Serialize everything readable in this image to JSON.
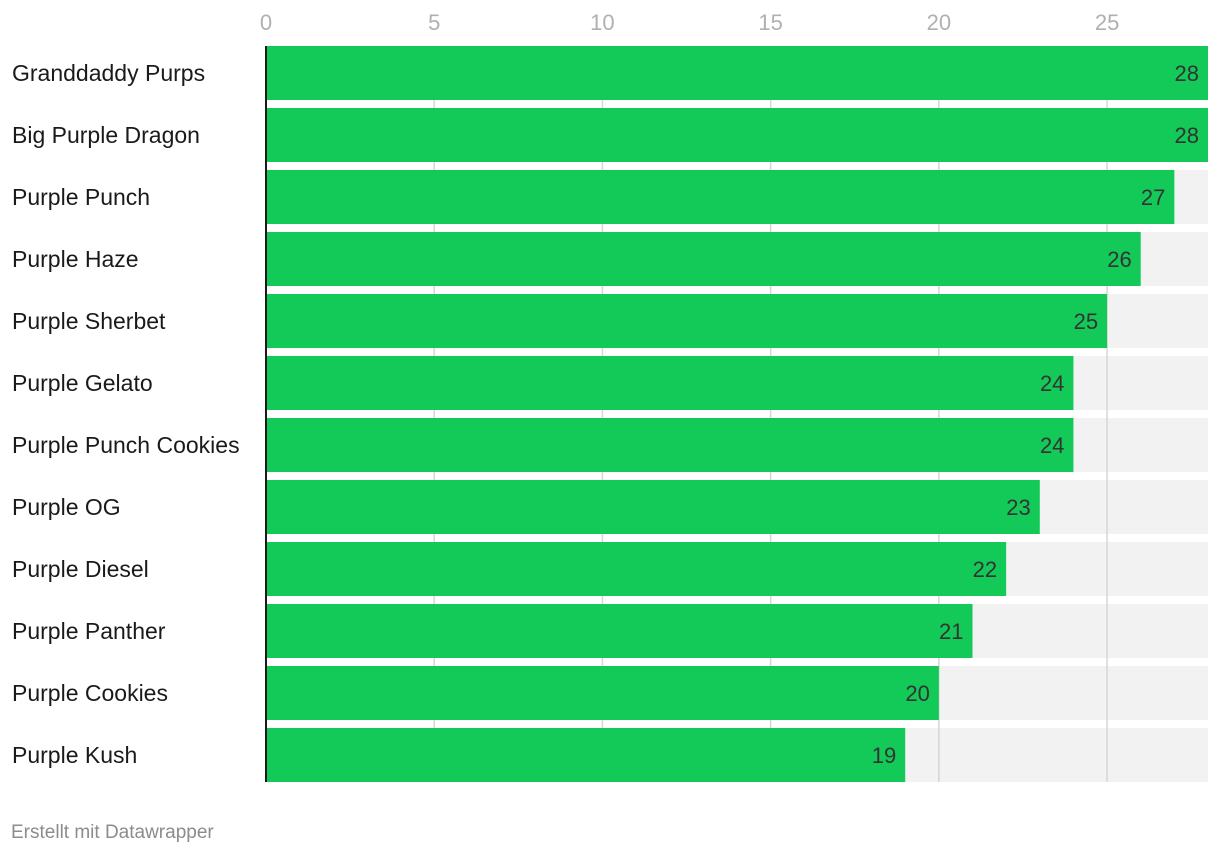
{
  "chart_data": {
    "type": "bar",
    "orientation": "horizontal",
    "categories": [
      "Granddaddy Purps",
      "Big Purple Dragon",
      "Purple Punch",
      "Purple Haze",
      "Purple Sherbet",
      "Purple Gelato",
      "Purple Punch Cookies",
      "Purple OG",
      "Purple Diesel",
      "Purple Panther",
      "Purple Cookies",
      "Purple Kush"
    ],
    "values": [
      28,
      28,
      27,
      26,
      25,
      24,
      24,
      23,
      22,
      21,
      20,
      19
    ],
    "xlim": [
      0,
      28
    ],
    "ticks": [
      0,
      5,
      10,
      15,
      20,
      25
    ],
    "tick_labels": [
      "0",
      "5",
      "10",
      "15",
      "20",
      "25"
    ],
    "axis_position": "top",
    "grid": true,
    "title": "",
    "xlabel": "",
    "ylabel": ""
  },
  "colors": {
    "bar": "#13c958",
    "track": "#f2f2f2",
    "grid": "#d6d6d6",
    "axis": "#1a1a1a"
  },
  "footer": {
    "credit": "Erstellt mit Datawrapper"
  }
}
